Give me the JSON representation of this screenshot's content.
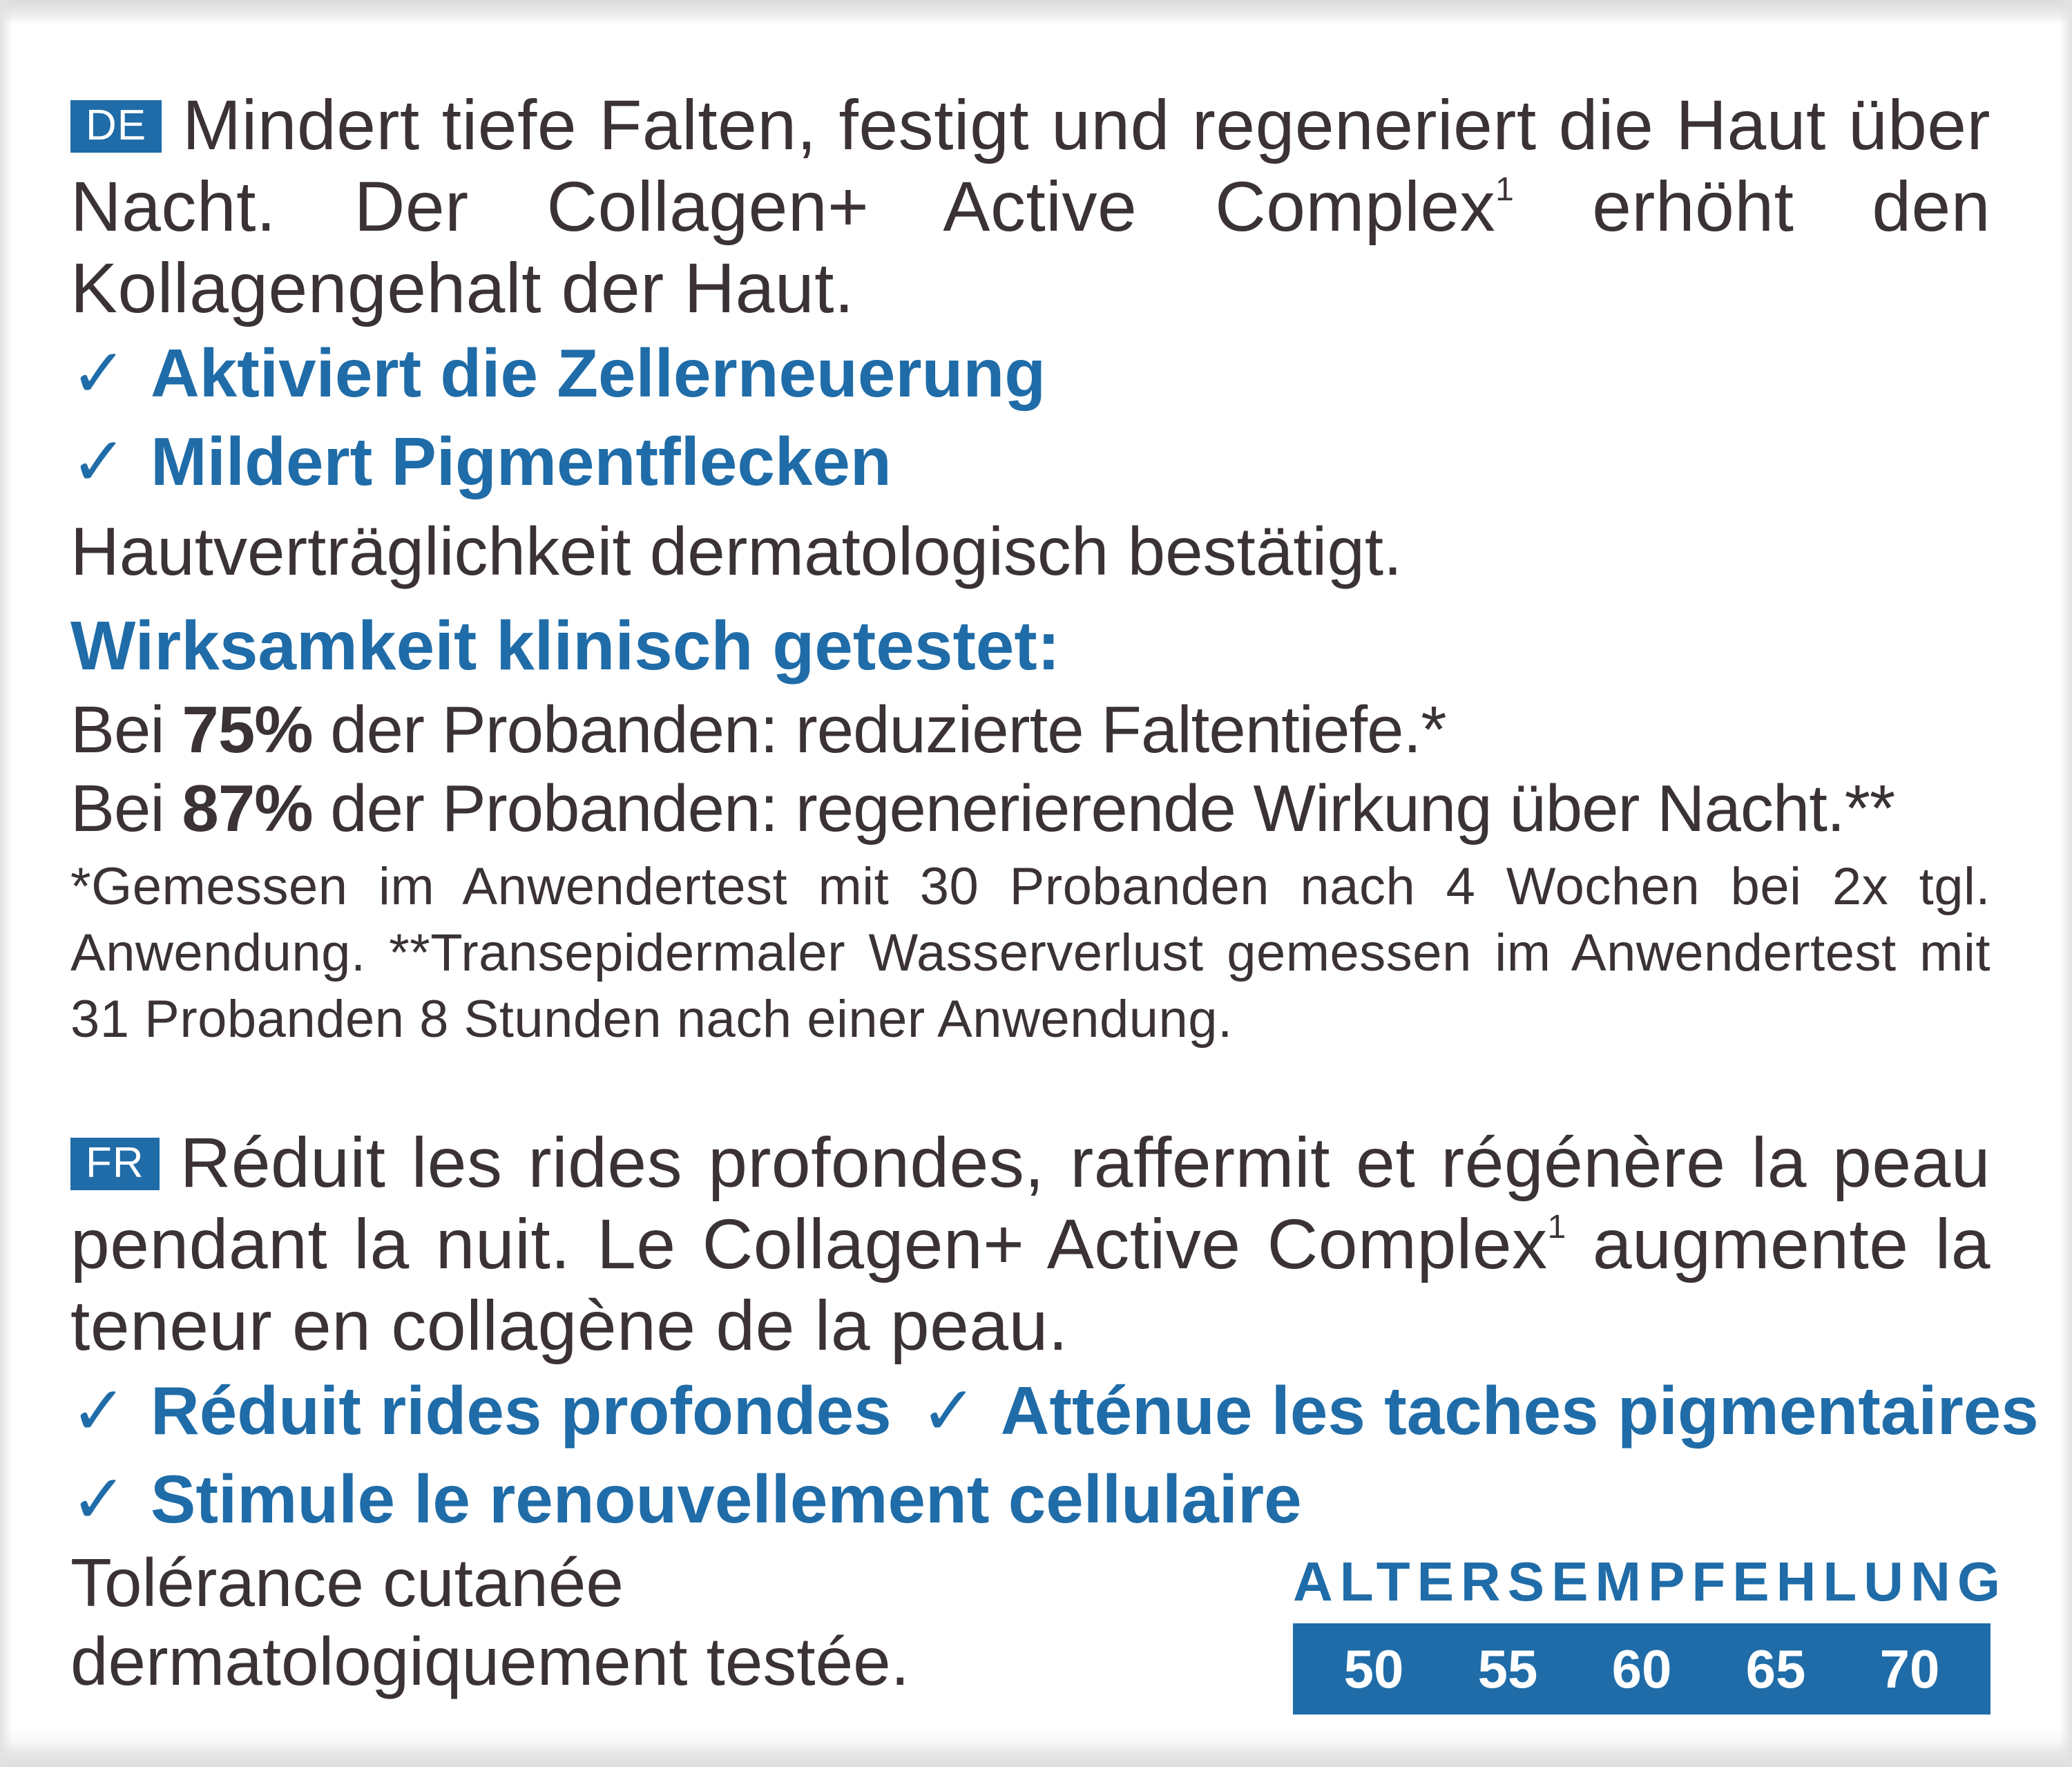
{
  "de": {
    "badge": "DE",
    "intro_before_sup": "Mindert tiefe Falten, festigt und regeneriert die Haut über Nacht. Der Collagen+ Active Complex",
    "sup": "1",
    "intro_after_sup": " erhöht den Kollagengehalt der Haut.",
    "benefits": [
      "Aktiviert die Zellerneuerung",
      "Mildert Pigmentflecken"
    ],
    "tolerance": "Hautverträglichkeit dermatologisch bestätigt.",
    "heading": "Wirksamkeit klinisch getestet:",
    "stats": [
      {
        "prefix": "Bei ",
        "percent": "75%",
        "suffix": " der Probanden: reduzierte Faltentiefe.*"
      },
      {
        "prefix": "Bei ",
        "percent": "87%",
        "suffix": " der Probanden: regenerierende Wirkung über Nacht.**"
      }
    ],
    "footnote": "*Gemessen im Anwendertest mit 30 Probanden nach 4 Wochen bei 2x tgl. Anwendung. **Transepidermaler Wasserverlust gemessen im Anwendertest mit 31 Probanden 8 Stunden nach einer Anwendung."
  },
  "fr": {
    "badge": "FR",
    "intro_before_sup": "Réduit les rides profondes, raffermit et régénère la peau pendant la nuit. Le Collagen+ Active Complex",
    "sup": "1",
    "intro_after_sup": " augmente la teneur en collagène de la peau.",
    "benefits_row1": [
      "Réduit rides profondes",
      "Atténue les taches pigmentaires"
    ],
    "benefits_row2": [
      "Stimule le renouvellement cellulaire"
    ],
    "tolerance_line1": "Tolérance cutanée",
    "tolerance_line2": "dermatologiquement testée."
  },
  "age": {
    "title": "ALTERSEMPFEHLUNG",
    "values": [
      "50",
      "55",
      "60",
      "65",
      "70"
    ]
  },
  "icons": {
    "check": "check-icon",
    "check_glyph": "✓"
  },
  "colors": {
    "accent": "#1f6ca8",
    "text": "#3a3234",
    "background": "#ffffff"
  }
}
